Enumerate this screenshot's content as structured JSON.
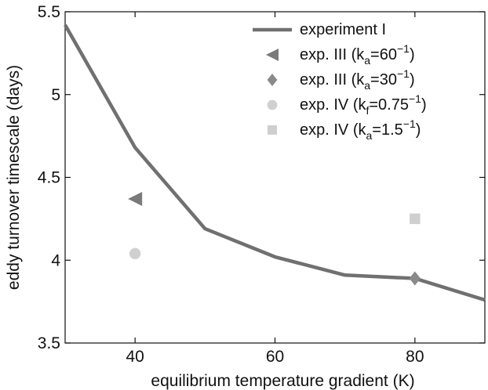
{
  "chart_data": {
    "type": "line",
    "title": "",
    "xlabel": "equilibrium temperature gradient (K)",
    "ylabel": "eddy turnover timescale (days)",
    "xlim": [
      30,
      90
    ],
    "ylim": [
      3.5,
      5.5
    ],
    "xticks": [
      40,
      60,
      80
    ],
    "yticks": [
      3.5,
      4,
      4.5,
      5,
      5.5
    ],
    "xtick_labels": [
      "40",
      "60",
      "80"
    ],
    "ytick_labels": [
      "3.5",
      "4",
      "4.5",
      "5",
      "5.5"
    ],
    "grid": false,
    "legend_position": "top-right",
    "series": [
      {
        "name": "experiment I",
        "kind": "line",
        "color": "#707070",
        "x": [
          30,
          40,
          50,
          60,
          70,
          80,
          90
        ],
        "y": [
          5.42,
          4.68,
          4.19,
          4.02,
          3.91,
          3.89,
          3.76
        ]
      },
      {
        "name": "exp. III (k",
        "sub": "a",
        "eq": "=60",
        "sup": "−1",
        "close": ")",
        "kind": "scatter",
        "marker": "triangle-left",
        "color": "#7a7a7a",
        "x": [
          40
        ],
        "y": [
          4.37
        ]
      },
      {
        "name": "exp. III (k",
        "sub": "a",
        "eq": "=30",
        "sup": "−1",
        "close": ")",
        "kind": "scatter",
        "marker": "diamond",
        "color": "#8a8a8a",
        "x": [
          80
        ],
        "y": [
          3.89
        ]
      },
      {
        "name": "exp. IV (k",
        "sub": "f",
        "eq": "=0.75",
        "sup": "−1",
        "close": ")",
        "kind": "scatter",
        "marker": "circle",
        "color": "#d0d0d0",
        "x": [
          40
        ],
        "y": [
          4.04
        ]
      },
      {
        "name": "exp. IV (k",
        "sub": "a",
        "eq": "=1.5",
        "sup": "−1",
        "close": ")",
        "kind": "scatter",
        "marker": "square",
        "color": "#cfcfcf",
        "x": [
          80
        ],
        "y": [
          4.25
        ]
      }
    ]
  }
}
